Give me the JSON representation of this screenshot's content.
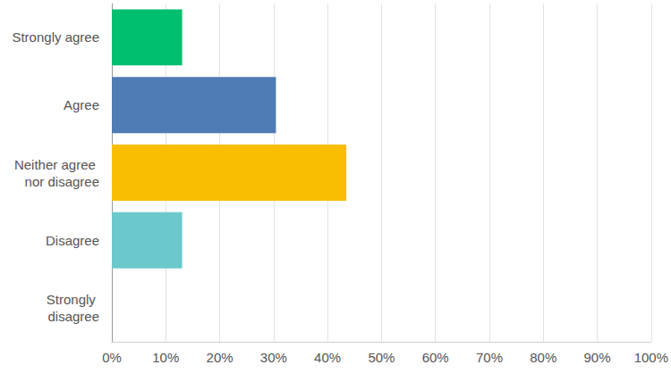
{
  "chart_data": {
    "type": "bar",
    "orientation": "horizontal",
    "categories": [
      "Strongly agree",
      "Agree",
      "Neither agree nor disagree",
      "Disagree",
      "Strongly disagree"
    ],
    "values": [
      13.04,
      30.43,
      43.48,
      13.04,
      0
    ],
    "colors": [
      "#00bf6f",
      "#507cb6",
      "#f9be00",
      "#6bc8cd",
      "#ff8b4f"
    ],
    "xlim": [
      0,
      100
    ],
    "xticks": [
      {
        "value": 0,
        "label": "0%"
      },
      {
        "value": 10,
        "label": "10%"
      },
      {
        "value": 20,
        "label": "20%"
      },
      {
        "value": 30,
        "label": "30%"
      },
      {
        "value": 40,
        "label": "40%"
      },
      {
        "value": 50,
        "label": "50%"
      },
      {
        "value": 60,
        "label": "60%"
      },
      {
        "value": 70,
        "label": "70%"
      },
      {
        "value": 80,
        "label": "80%"
      },
      {
        "value": 90,
        "label": "90%"
      },
      {
        "value": 100,
        "label": "100%"
      }
    ],
    "grid": true
  }
}
